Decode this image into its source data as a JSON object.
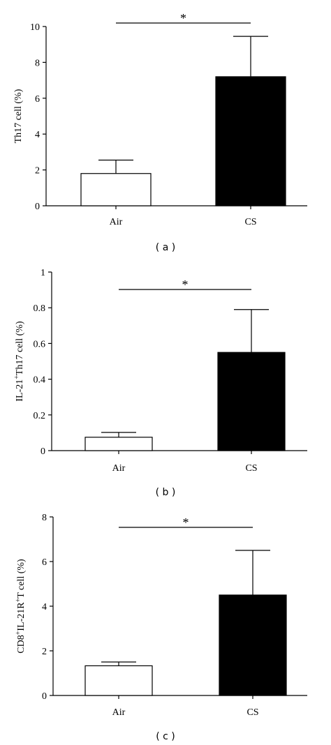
{
  "chart_data": [
    {
      "type": "bar",
      "panel_label": "( a )",
      "ylabel_parts": [
        {
          "t": "Th17 cell (%)",
          "sup": false
        }
      ],
      "categories": [
        "Air",
        "CS"
      ],
      "values": [
        1.8,
        7.2
      ],
      "errors": [
        0.75,
        2.25
      ],
      "colors": [
        "#ffffff",
        "#000000"
      ],
      "ylim": [
        0,
        10
      ],
      "ticks": [
        0,
        2,
        4,
        6,
        8,
        10
      ],
      "tick_labels": [
        "0",
        "2",
        "4",
        "6",
        "8",
        "10"
      ],
      "significance": {
        "marker": "*"
      }
    },
    {
      "type": "bar",
      "panel_label": "( b )",
      "ylabel_parts": [
        {
          "t": "IL-21",
          "sup": false
        },
        {
          "t": "+",
          "sup": true
        },
        {
          "t": "Th17 cell (%)",
          "sup": false
        }
      ],
      "categories": [
        "Air",
        "CS"
      ],
      "values": [
        0.075,
        0.55
      ],
      "errors": [
        0.027,
        0.24
      ],
      "colors": [
        "#ffffff",
        "#000000"
      ],
      "ylim": [
        0,
        1
      ],
      "ticks": [
        0,
        0.2,
        0.4,
        0.6,
        0.8,
        1
      ],
      "tick_labels": [
        "0",
        "0.2",
        "0.4",
        "0.6",
        "0.8",
        "1"
      ],
      "significance": {
        "marker": "*"
      }
    },
    {
      "type": "bar",
      "panel_label": "( c )",
      "ylabel_parts": [
        {
          "t": "CD8",
          "sup": false
        },
        {
          "t": "+",
          "sup": true
        },
        {
          "t": "IL-21R",
          "sup": false
        },
        {
          "t": "+",
          "sup": true
        },
        {
          "t": "T cell (%)",
          "sup": false
        }
      ],
      "categories": [
        "Air",
        "CS"
      ],
      "values": [
        1.33,
        4.5
      ],
      "errors": [
        0.17,
        2.0
      ],
      "colors": [
        "#ffffff",
        "#000000"
      ],
      "ylim": [
        0,
        8
      ],
      "ticks": [
        0,
        2,
        4,
        6,
        8
      ],
      "tick_labels": [
        "0",
        "2",
        "4",
        "6",
        "8"
      ],
      "significance": {
        "marker": "*"
      }
    }
  ]
}
